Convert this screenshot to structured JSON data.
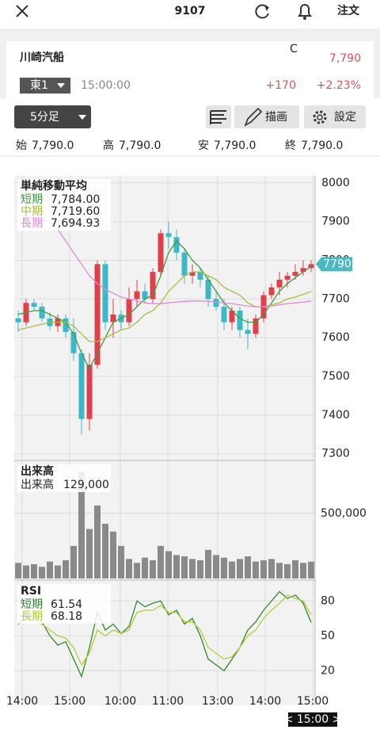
{
  "header": {
    "title": "9107",
    "order_button": "注文"
  },
  "quote": {
    "name": "川崎汽船",
    "market": "東1",
    "time": "15:00:00",
    "flag": "C",
    "price": "7,790",
    "change": "+170",
    "change_pct": "+2.23%"
  },
  "toolbar": {
    "interval": "5分足",
    "draw": "描画",
    "settings": "設定"
  },
  "ohlc": [
    {
      "label": "始",
      "value": "7,790.0"
    },
    {
      "label": "高",
      "value": "7,790.0"
    },
    {
      "label": "安",
      "value": "7,790.0"
    },
    {
      "label": "終",
      "value": "7,790.0"
    }
  ],
  "cursor_label": "< 15:00 >",
  "chart_data": [
    {
      "type": "candlestick",
      "title": "単純移動平均",
      "up_color": "#e0404a",
      "down_color": "#3cb8c8",
      "last_price": 7790,
      "last_price_color": "#4cb8c4",
      "x": [
        0.5,
        1.5,
        2.5,
        3.5,
        4.5,
        5.5,
        6.5,
        7.5,
        8.5,
        9.5,
        10.5,
        11.5,
        12.5,
        13.5,
        14.5,
        15.5,
        16.5,
        17.5,
        18.5,
        19.5,
        20.5,
        21.5,
        22.5,
        23.5,
        24.5,
        25.5,
        26.5,
        27.5,
        28.5,
        29.5,
        30.5,
        31.5,
        32.5,
        33.5,
        34.5,
        35.5,
        36.5,
        37.5
      ],
      "xlim": [
        0,
        38
      ],
      "ylim": [
        7285,
        8018
      ],
      "yticks": [
        7300,
        7400,
        7500,
        7600,
        7700,
        7800,
        7900,
        8000
      ],
      "open": [
        7650,
        7640,
        7690,
        7680,
        7650,
        7630,
        7650,
        7615,
        7560,
        7390,
        7530,
        7790,
        7640,
        7660,
        7640,
        7700,
        7720,
        7700,
        7770,
        7870,
        7860,
        7820,
        7760,
        7770,
        7750,
        7700,
        7680,
        7640,
        7670,
        7620,
        7610,
        7650,
        7710,
        7730,
        7750,
        7760,
        7770,
        7780
      ],
      "high": [
        7670,
        7700,
        7700,
        7690,
        7665,
        7660,
        7660,
        7650,
        7570,
        7560,
        7800,
        7800,
        7700,
        7670,
        7730,
        7750,
        7740,
        7780,
        7880,
        7900,
        7880,
        7830,
        7790,
        7780,
        7760,
        7720,
        7700,
        7680,
        7680,
        7650,
        7660,
        7720,
        7740,
        7770,
        7770,
        7790,
        7800,
        7800
      ],
      "low": [
        7615,
        7630,
        7670,
        7640,
        7620,
        7615,
        7600,
        7540,
        7350,
        7360,
        7520,
        7620,
        7600,
        7620,
        7630,
        7680,
        7690,
        7690,
        7760,
        7830,
        7800,
        7740,
        7740,
        7730,
        7680,
        7670,
        7620,
        7620,
        7600,
        7570,
        7600,
        7640,
        7700,
        7710,
        7730,
        7750,
        7760,
        7770
      ],
      "close": [
        7640,
        7690,
        7680,
        7650,
        7630,
        7650,
        7615,
        7560,
        7390,
        7530,
        7790,
        7640,
        7660,
        7640,
        7700,
        7720,
        7700,
        7770,
        7870,
        7860,
        7820,
        7760,
        7770,
        7750,
        7700,
        7680,
        7640,
        7670,
        7620,
        7610,
        7650,
        7710,
        7730,
        7750,
        7760,
        7770,
        7780,
        7790
      ],
      "series": [
        {
          "name": "短期",
          "color": "#3f9a3f",
          "legend_value": "7,784.00",
          "values": [
            7660,
            7665,
            7670,
            7670,
            7660,
            7650,
            7640,
            7610,
            7560,
            7520,
            7560,
            7600,
            7640,
            7650,
            7660,
            7680,
            7700,
            7710,
            7760,
            7820,
            7850,
            7830,
            7800,
            7780,
            7750,
            7720,
            7690,
            7670,
            7650,
            7640,
            7640,
            7660,
            7690,
            7720,
            7740,
            7755,
            7770,
            7784
          ]
        },
        {
          "name": "中期",
          "color": "#a9bc3c",
          "legend_value": "7,719.60",
          "values": [
            7620,
            7625,
            7630,
            7635,
            7640,
            7640,
            7640,
            7630,
            7610,
            7590,
            7590,
            7600,
            7610,
            7620,
            7625,
            7640,
            7660,
            7670,
            7690,
            7720,
            7740,
            7760,
            7770,
            7770,
            7760,
            7750,
            7730,
            7720,
            7710,
            7690,
            7680,
            7680,
            7685,
            7690,
            7700,
            7705,
            7712,
            7719.6
          ]
        },
        {
          "name": "長期",
          "color": "#e08ad8",
          "legend_value": "7,694.93",
          "values": [
            null,
            null,
            null,
            null,
            null,
            7880,
            7850,
            7820,
            7790,
            7760,
            7740,
            7725,
            7715,
            7705,
            7700,
            7695,
            7690,
            7688,
            7688,
            7690,
            7692,
            7694,
            7695,
            7695,
            7694,
            7692,
            7690,
            7688,
            7685,
            7682,
            7680,
            7680,
            7682,
            7685,
            7688,
            7690,
            7692,
            7694.93
          ]
        }
      ]
    },
    {
      "type": "bar",
      "title": "出来高",
      "legend_name": "出来高",
      "legend_value": "129,000",
      "color": "#8a8a8a",
      "x": [
        0.5,
        1.5,
        2.5,
        3.5,
        4.5,
        5.5,
        6.5,
        7.5,
        8.5,
        9.5,
        10.5,
        11.5,
        12.5,
        13.5,
        14.5,
        15.5,
        16.5,
        17.5,
        18.5,
        19.5,
        20.5,
        21.5,
        22.5,
        23.5,
        24.5,
        25.5,
        26.5,
        27.5,
        28.5,
        29.5,
        30.5,
        31.5,
        32.5,
        33.5,
        34.5,
        35.5,
        36.5,
        37.5
      ],
      "xlim": [
        0,
        38
      ],
      "ylim": [
        0,
        900000
      ],
      "yticks": [
        {
          "value": 500000,
          "label": "500,000"
        }
      ],
      "values": [
        120000,
        100000,
        110000,
        90000,
        130000,
        100000,
        140000,
        250000,
        820000,
        380000,
        560000,
        420000,
        360000,
        250000,
        150000,
        120000,
        160000,
        140000,
        250000,
        210000,
        180000,
        170000,
        150000,
        140000,
        220000,
        180000,
        160000,
        130000,
        150000,
        170000,
        130000,
        140000,
        150000,
        120000,
        110000,
        140000,
        120000,
        129000
      ]
    },
    {
      "type": "line",
      "title": "RSI",
      "x": [
        0.5,
        1.5,
        2.5,
        3.5,
        4.5,
        5.5,
        6.5,
        7.5,
        8.5,
        9.5,
        10.5,
        11.5,
        12.5,
        13.5,
        14.5,
        15.5,
        16.5,
        17.5,
        18.5,
        19.5,
        20.5,
        21.5,
        22.5,
        23.5,
        24.5,
        25.5,
        26.5,
        27.5,
        28.5,
        29.5,
        30.5,
        31.5,
        32.5,
        33.5,
        34.5,
        35.5,
        36.5,
        37.5
      ],
      "xlim": [
        0,
        38
      ],
      "ylim": [
        -9.7,
        97.2
      ],
      "yticks": [
        20,
        50,
        80
      ],
      "xticks": [
        {
          "value": 1.0,
          "label": "14:00"
        },
        {
          "value": 7.0,
          "label": "15:00"
        },
        {
          "value": 13.4,
          "label": "10:00"
        },
        {
          "value": 19.4,
          "label": "11:00"
        },
        {
          "value": 25.7,
          "label": "13:00"
        },
        {
          "value": 31.7,
          "label": "14:00"
        },
        {
          "value": 37.7,
          "label": "15:00"
        }
      ],
      "series": [
        {
          "name": "短期",
          "color": "#2f8a2f",
          "legend_value": "61.54",
          "values": [
            60,
            65,
            70,
            62,
            50,
            42,
            45,
            30,
            15,
            40,
            70,
            55,
            60,
            52,
            58,
            80,
            75,
            78,
            80,
            68,
            72,
            60,
            65,
            50,
            30,
            25,
            20,
            30,
            40,
            55,
            62,
            72,
            80,
            88,
            82,
            85,
            78,
            61.54
          ]
        },
        {
          "name": "長期",
          "color": "#b4cc3a",
          "legend_value": "68.18",
          "values": [
            68,
            66,
            64,
            60,
            55,
            50,
            48,
            40,
            25,
            35,
            55,
            50,
            55,
            52,
            55,
            70,
            72,
            72,
            76,
            70,
            70,
            62,
            62,
            55,
            40,
            35,
            30,
            32,
            40,
            50,
            55,
            65,
            72,
            78,
            85,
            82,
            80,
            68.18
          ]
        }
      ]
    }
  ]
}
